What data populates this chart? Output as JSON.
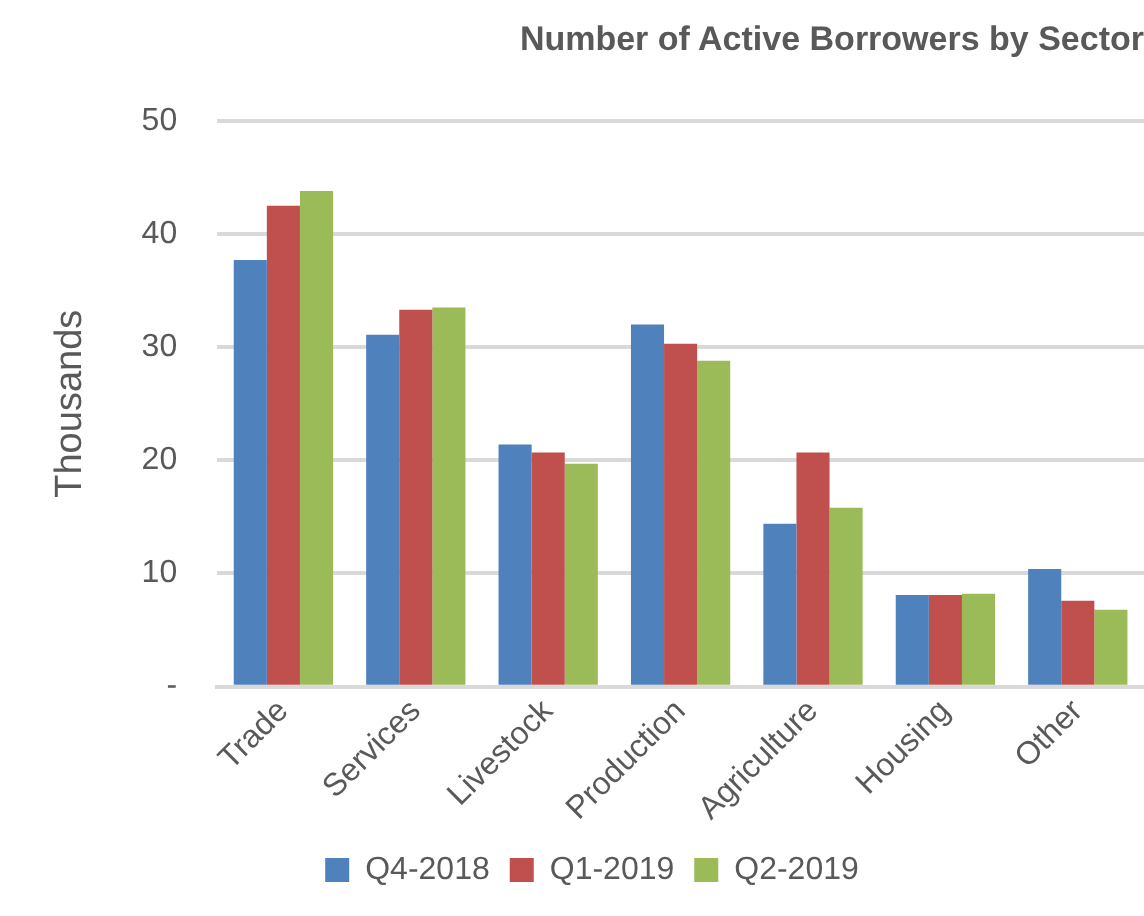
{
  "chart_data": {
    "type": "bar",
    "title": "Number of Active Borrowers by Sector",
    "ylabel": "Thousands",
    "categories": [
      "Trade",
      "Services",
      "Livestock",
      "Production",
      "Agriculture",
      "Housing",
      "Other"
    ],
    "series": [
      {
        "name": "Q4-2018",
        "color": "#4f81bd",
        "values": [
          37.7,
          31.1,
          21.4,
          32.0,
          14.4,
          8.1,
          10.4
        ]
      },
      {
        "name": "Q1-2019",
        "color": "#c0504d",
        "values": [
          42.5,
          33.3,
          20.7,
          30.3,
          20.7,
          8.1,
          7.6
        ]
      },
      {
        "name": "Q2-2019",
        "color": "#9bbb59",
        "values": [
          43.8,
          33.5,
          19.7,
          28.8,
          15.8,
          8.2,
          6.8
        ]
      }
    ],
    "ylim": [
      0,
      50
    ],
    "yticks": [
      {
        "value": 0,
        "label": "-"
      },
      10,
      20,
      30,
      40,
      50
    ],
    "grid": "y",
    "legend": "bottom"
  }
}
